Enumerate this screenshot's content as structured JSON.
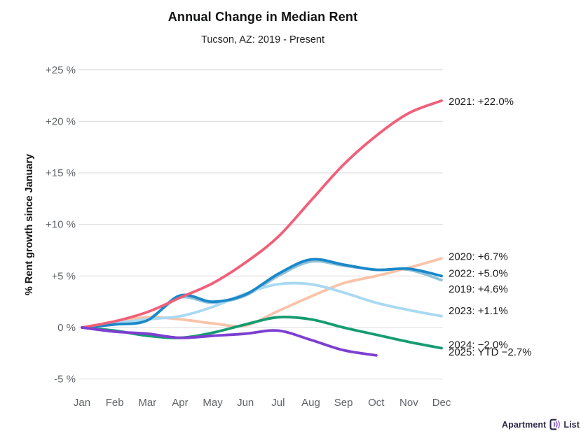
{
  "page": {
    "title": "Annual Change in Median Rent",
    "subtitle": "Tucson, AZ: 2019 - Present"
  },
  "footer": {
    "brand_left": "Apartment",
    "brand_right": "List"
  },
  "chart_data": {
    "type": "line",
    "title": "Annual Change in Median Rent",
    "subtitle": "Tucson, AZ: 2019 - Present",
    "xlabel": "",
    "ylabel": "% Rent growth since January",
    "x_ticks": [
      "Jan",
      "Feb",
      "Mar",
      "Apr",
      "May",
      "Jun",
      "Jul",
      "Aug",
      "Sep",
      "Oct",
      "Nov",
      "Dec"
    ],
    "y_ticks": [
      "+25 %",
      "+20 %",
      "+15 %",
      "+10 %",
      "+5 %",
      "0 %",
      "-5 %"
    ],
    "y_tick_values": [
      25,
      20,
      15,
      10,
      5,
      0,
      -5
    ],
    "ylim": [
      -6.5,
      26.5
    ],
    "grid": "horizontal-only",
    "legend_position": "right-edge-annotations",
    "colors": {
      "grid": "#d9d9d9",
      "tick_text": "#5f6368",
      "annotation_text": "#1c1d1f"
    },
    "series": [
      {
        "name": "2019",
        "color": "#92c1da",
        "label": "2019: +4.6%",
        "end_value": 4.6,
        "label_dy": 13,
        "values": [
          0,
          0.3,
          0.8,
          2.9,
          2.4,
          3.1,
          5.0,
          6.4,
          6.0,
          5.6,
          5.6,
          4.6
        ]
      },
      {
        "name": "2020",
        "color": "#f8c3a9",
        "label": "2020: +6.7%",
        "end_value": 6.7,
        "label_dy": -3,
        "values": [
          0,
          0.5,
          1.0,
          0.8,
          0.4,
          0.2,
          1.6,
          3.0,
          4.3,
          5.0,
          5.8,
          6.7
        ]
      },
      {
        "name": "2023",
        "color": "#a9d9f2",
        "label": "2023: +1.1%",
        "end_value": 1.1,
        "label_dy": -8,
        "values": [
          0,
          0.4,
          0.8,
          1.1,
          2.0,
          3.3,
          4.2,
          4.2,
          3.4,
          2.4,
          1.7,
          1.1
        ]
      },
      {
        "name": "2024",
        "color": "#169c72",
        "label": "2024: −2.0%",
        "end_value": -2.0,
        "label_dy": -5,
        "values": [
          0,
          -0.3,
          -0.8,
          -1.0,
          -0.5,
          0.3,
          1.0,
          0.8,
          0.0,
          -0.7,
          -1.4,
          -2.0
        ]
      },
      {
        "name": "2022",
        "color": "#1a88c9",
        "label": "2022: +5.0%",
        "end_value": 5.0,
        "label_dy": -4,
        "values": [
          0,
          0.3,
          0.7,
          3.1,
          2.5,
          3.2,
          5.2,
          6.6,
          6.1,
          5.6,
          5.7,
          5.0
        ]
      },
      {
        "name": "2021",
        "color": "#f15f79",
        "label": "2021: +22.0%",
        "end_value": 22.0,
        "label_dy": 1,
        "values": [
          0,
          0.6,
          1.5,
          2.9,
          4.3,
          6.3,
          8.8,
          12.3,
          15.8,
          18.6,
          20.8,
          22.0
        ]
      },
      {
        "name": "2025",
        "color": "#7d3fd1",
        "label": "2025: YTD −2.7%",
        "end_value": -2.7,
        "label_dy": -5,
        "values": [
          0,
          -0.4,
          -0.6,
          -1.0,
          -0.8,
          -0.6,
          -0.3,
          -1.2,
          -2.2,
          -2.7
        ]
      }
    ]
  }
}
